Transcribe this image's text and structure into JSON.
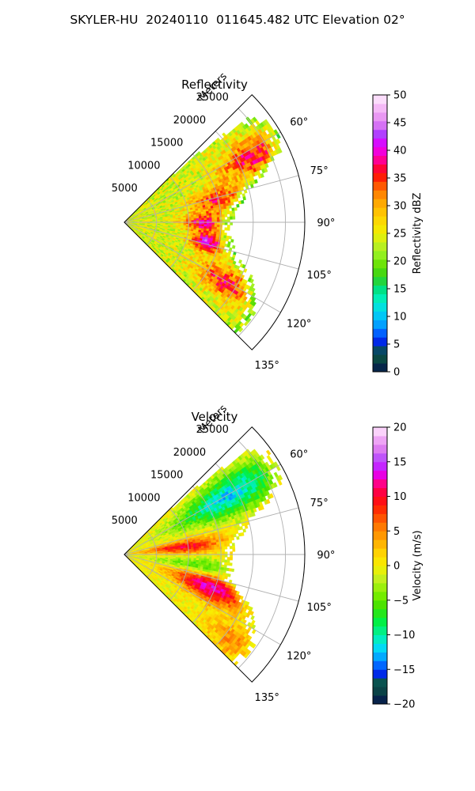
{
  "title": "SKYLER-HU  20240110  011645.482 UTC Elevation 02°",
  "chart_data": [
    {
      "type": "heatmap",
      "projection": "polar-sector",
      "title": "Reflectivity",
      "range_label": "Meters",
      "azimuth_range_deg": [
        45,
        135
      ],
      "range_max_m": 28000,
      "range_ticks": [
        "5000",
        "10000",
        "15000",
        "20000",
        "25000"
      ],
      "azimuth_ticks": [
        "60°",
        "75°",
        "90°",
        "105°",
        "120°",
        "135°"
      ],
      "colorbar": {
        "label": "Reflectivity dBZ",
        "min": 0,
        "max": 50,
        "ticks": [
          "0",
          "5",
          "10",
          "15",
          "20",
          "25",
          "30",
          "35",
          "40",
          "45",
          "50"
        ],
        "stops": [
          {
            "v": 0,
            "c": "#04104a"
          },
          {
            "v": 1.5,
            "c": "#0a3a4a"
          },
          {
            "v": 3.5,
            "c": "#0a5a3a"
          },
          {
            "v": 5,
            "c": "#0018e0"
          },
          {
            "v": 7,
            "c": "#0060ff"
          },
          {
            "v": 9,
            "c": "#00b0ff"
          },
          {
            "v": 11,
            "c": "#00d8f0"
          },
          {
            "v": 13,
            "c": "#00f0c0"
          },
          {
            "v": 15,
            "c": "#00e080"
          },
          {
            "v": 17,
            "c": "#30d020"
          },
          {
            "v": 19,
            "c": "#60e000"
          },
          {
            "v": 21,
            "c": "#90f020"
          },
          {
            "v": 23,
            "c": "#c0f020"
          },
          {
            "v": 25,
            "c": "#f0f000"
          },
          {
            "v": 28,
            "c": "#ffd000"
          },
          {
            "v": 31,
            "c": "#ffa000"
          },
          {
            "v": 33,
            "c": "#ff7000"
          },
          {
            "v": 35,
            "c": "#ff2000"
          },
          {
            "v": 37,
            "c": "#ff0040"
          },
          {
            "v": 39,
            "c": "#ff00c0"
          },
          {
            "v": 41,
            "c": "#e000ff"
          },
          {
            "v": 43,
            "c": "#b040ff"
          },
          {
            "v": 45,
            "c": "#e080f0"
          },
          {
            "v": 48,
            "c": "#f8c0f8"
          },
          {
            "v": 50,
            "c": "#fff0ff"
          }
        ]
      },
      "field": {
        "base": 24,
        "noise": 4,
        "cells": [
          {
            "r_m": 22000,
            "az_deg": 62,
            "value": 37,
            "r_sigma_m": 5000,
            "az_sigma_deg": 7
          },
          {
            "r_m": 14500,
            "az_deg": 76,
            "value": 35,
            "r_sigma_m": 4000,
            "az_sigma_deg": 8
          },
          {
            "r_m": 12000,
            "az_deg": 90,
            "value": 38,
            "r_sigma_m": 3000,
            "az_sigma_deg": 6
          },
          {
            "r_m": 13000,
            "az_deg": 103,
            "value": 42,
            "r_sigma_m": 2500,
            "az_sigma_deg": 6
          },
          {
            "r_m": 18000,
            "az_deg": 120,
            "value": 36,
            "r_sigma_m": 5000,
            "az_sigma_deg": 7
          }
        ],
        "edge_value": 20,
        "extent": [
          {
            "az_deg": 45,
            "r_m": 8000
          },
          {
            "az_deg": 50,
            "r_m": 25000
          },
          {
            "az_deg": 55,
            "r_m": 27500
          },
          {
            "az_deg": 65,
            "r_m": 27000
          },
          {
            "az_deg": 75,
            "r_m": 20000
          },
          {
            "az_deg": 85,
            "r_m": 17000
          },
          {
            "az_deg": 95,
            "r_m": 16500
          },
          {
            "az_deg": 105,
            "r_m": 17500
          },
          {
            "az_deg": 115,
            "r_m": 22000
          },
          {
            "az_deg": 125,
            "r_m": 24500
          },
          {
            "az_deg": 132,
            "r_m": 25000
          },
          {
            "az_deg": 135,
            "r_m": 24000
          }
        ]
      }
    },
    {
      "type": "heatmap",
      "projection": "polar-sector",
      "title": "Velocity",
      "range_label": "Meters",
      "azimuth_range_deg": [
        45,
        135
      ],
      "range_max_m": 28000,
      "range_ticks": [
        "5000",
        "10000",
        "15000",
        "20000",
        "25000"
      ],
      "azimuth_ticks": [
        "60°",
        "75°",
        "90°",
        "105°",
        "120°",
        "135°"
      ],
      "colorbar": {
        "label": "Velocity (m/s)",
        "min": -20,
        "max": 20,
        "ticks": [
          "−20",
          "−15",
          "−10",
          "−5",
          "0",
          "5",
          "10",
          "15",
          "20"
        ],
        "stops": [
          {
            "v": -20,
            "c": "#04104a"
          },
          {
            "v": -18.5,
            "c": "#0a3a4a"
          },
          {
            "v": -17,
            "c": "#0a5a3a"
          },
          {
            "v": -16,
            "c": "#0018e0"
          },
          {
            "v": -14.5,
            "c": "#0060ff"
          },
          {
            "v": -13,
            "c": "#00b0ff"
          },
          {
            "v": -11.5,
            "c": "#00e8f0"
          },
          {
            "v": -10,
            "c": "#00f0a0"
          },
          {
            "v": -8,
            "c": "#00f040"
          },
          {
            "v": -6,
            "c": "#40e000"
          },
          {
            "v": -4,
            "c": "#80f000"
          },
          {
            "v": -2,
            "c": "#c0f020"
          },
          {
            "v": 0,
            "c": "#f8f000"
          },
          {
            "v": 2,
            "c": "#ffd000"
          },
          {
            "v": 4,
            "c": "#ffa000"
          },
          {
            "v": 6,
            "c": "#ff7000"
          },
          {
            "v": 8,
            "c": "#ff3000"
          },
          {
            "v": 10,
            "c": "#ff0020"
          },
          {
            "v": 12,
            "c": "#ff0090"
          },
          {
            "v": 13.5,
            "c": "#e000ff"
          },
          {
            "v": 15,
            "c": "#b040ff"
          },
          {
            "v": 17,
            "c": "#e080f0"
          },
          {
            "v": 19,
            "c": "#f8c0f8"
          },
          {
            "v": 20,
            "c": "#fff0ff"
          }
        ]
      },
      "field": {
        "base": 0,
        "noise": 2,
        "cells": [
          {
            "r_m": 18000,
            "az_deg": 60,
            "value": -12,
            "r_sigma_m": 9000,
            "az_sigma_deg": 9
          },
          {
            "r_m": 9000,
            "az_deg": 82,
            "value": 10,
            "r_sigma_m": 6000,
            "az_sigma_deg": 6
          },
          {
            "r_m": 12000,
            "az_deg": 98,
            "value": -6,
            "r_sigma_m": 8000,
            "az_sigma_deg": 6
          },
          {
            "r_m": 14000,
            "az_deg": 110,
            "value": 13,
            "r_sigma_m": 6000,
            "az_sigma_deg": 8
          },
          {
            "r_m": 22000,
            "az_deg": 128,
            "value": 5,
            "r_sigma_m": 5000,
            "az_sigma_deg": 6
          }
        ],
        "edge_value": 0,
        "extent": [
          {
            "az_deg": 45,
            "r_m": 8000
          },
          {
            "az_deg": 50,
            "r_m": 25000
          },
          {
            "az_deg": 55,
            "r_m": 27500
          },
          {
            "az_deg": 65,
            "r_m": 27000
          },
          {
            "az_deg": 75,
            "r_m": 20000
          },
          {
            "az_deg": 85,
            "r_m": 17000
          },
          {
            "az_deg": 95,
            "r_m": 16500
          },
          {
            "az_deg": 105,
            "r_m": 17500
          },
          {
            "az_deg": 115,
            "r_m": 22000
          },
          {
            "az_deg": 125,
            "r_m": 24500
          },
          {
            "az_deg": 132,
            "r_m": 25000
          },
          {
            "az_deg": 135,
            "r_m": 24000
          }
        ]
      }
    }
  ]
}
